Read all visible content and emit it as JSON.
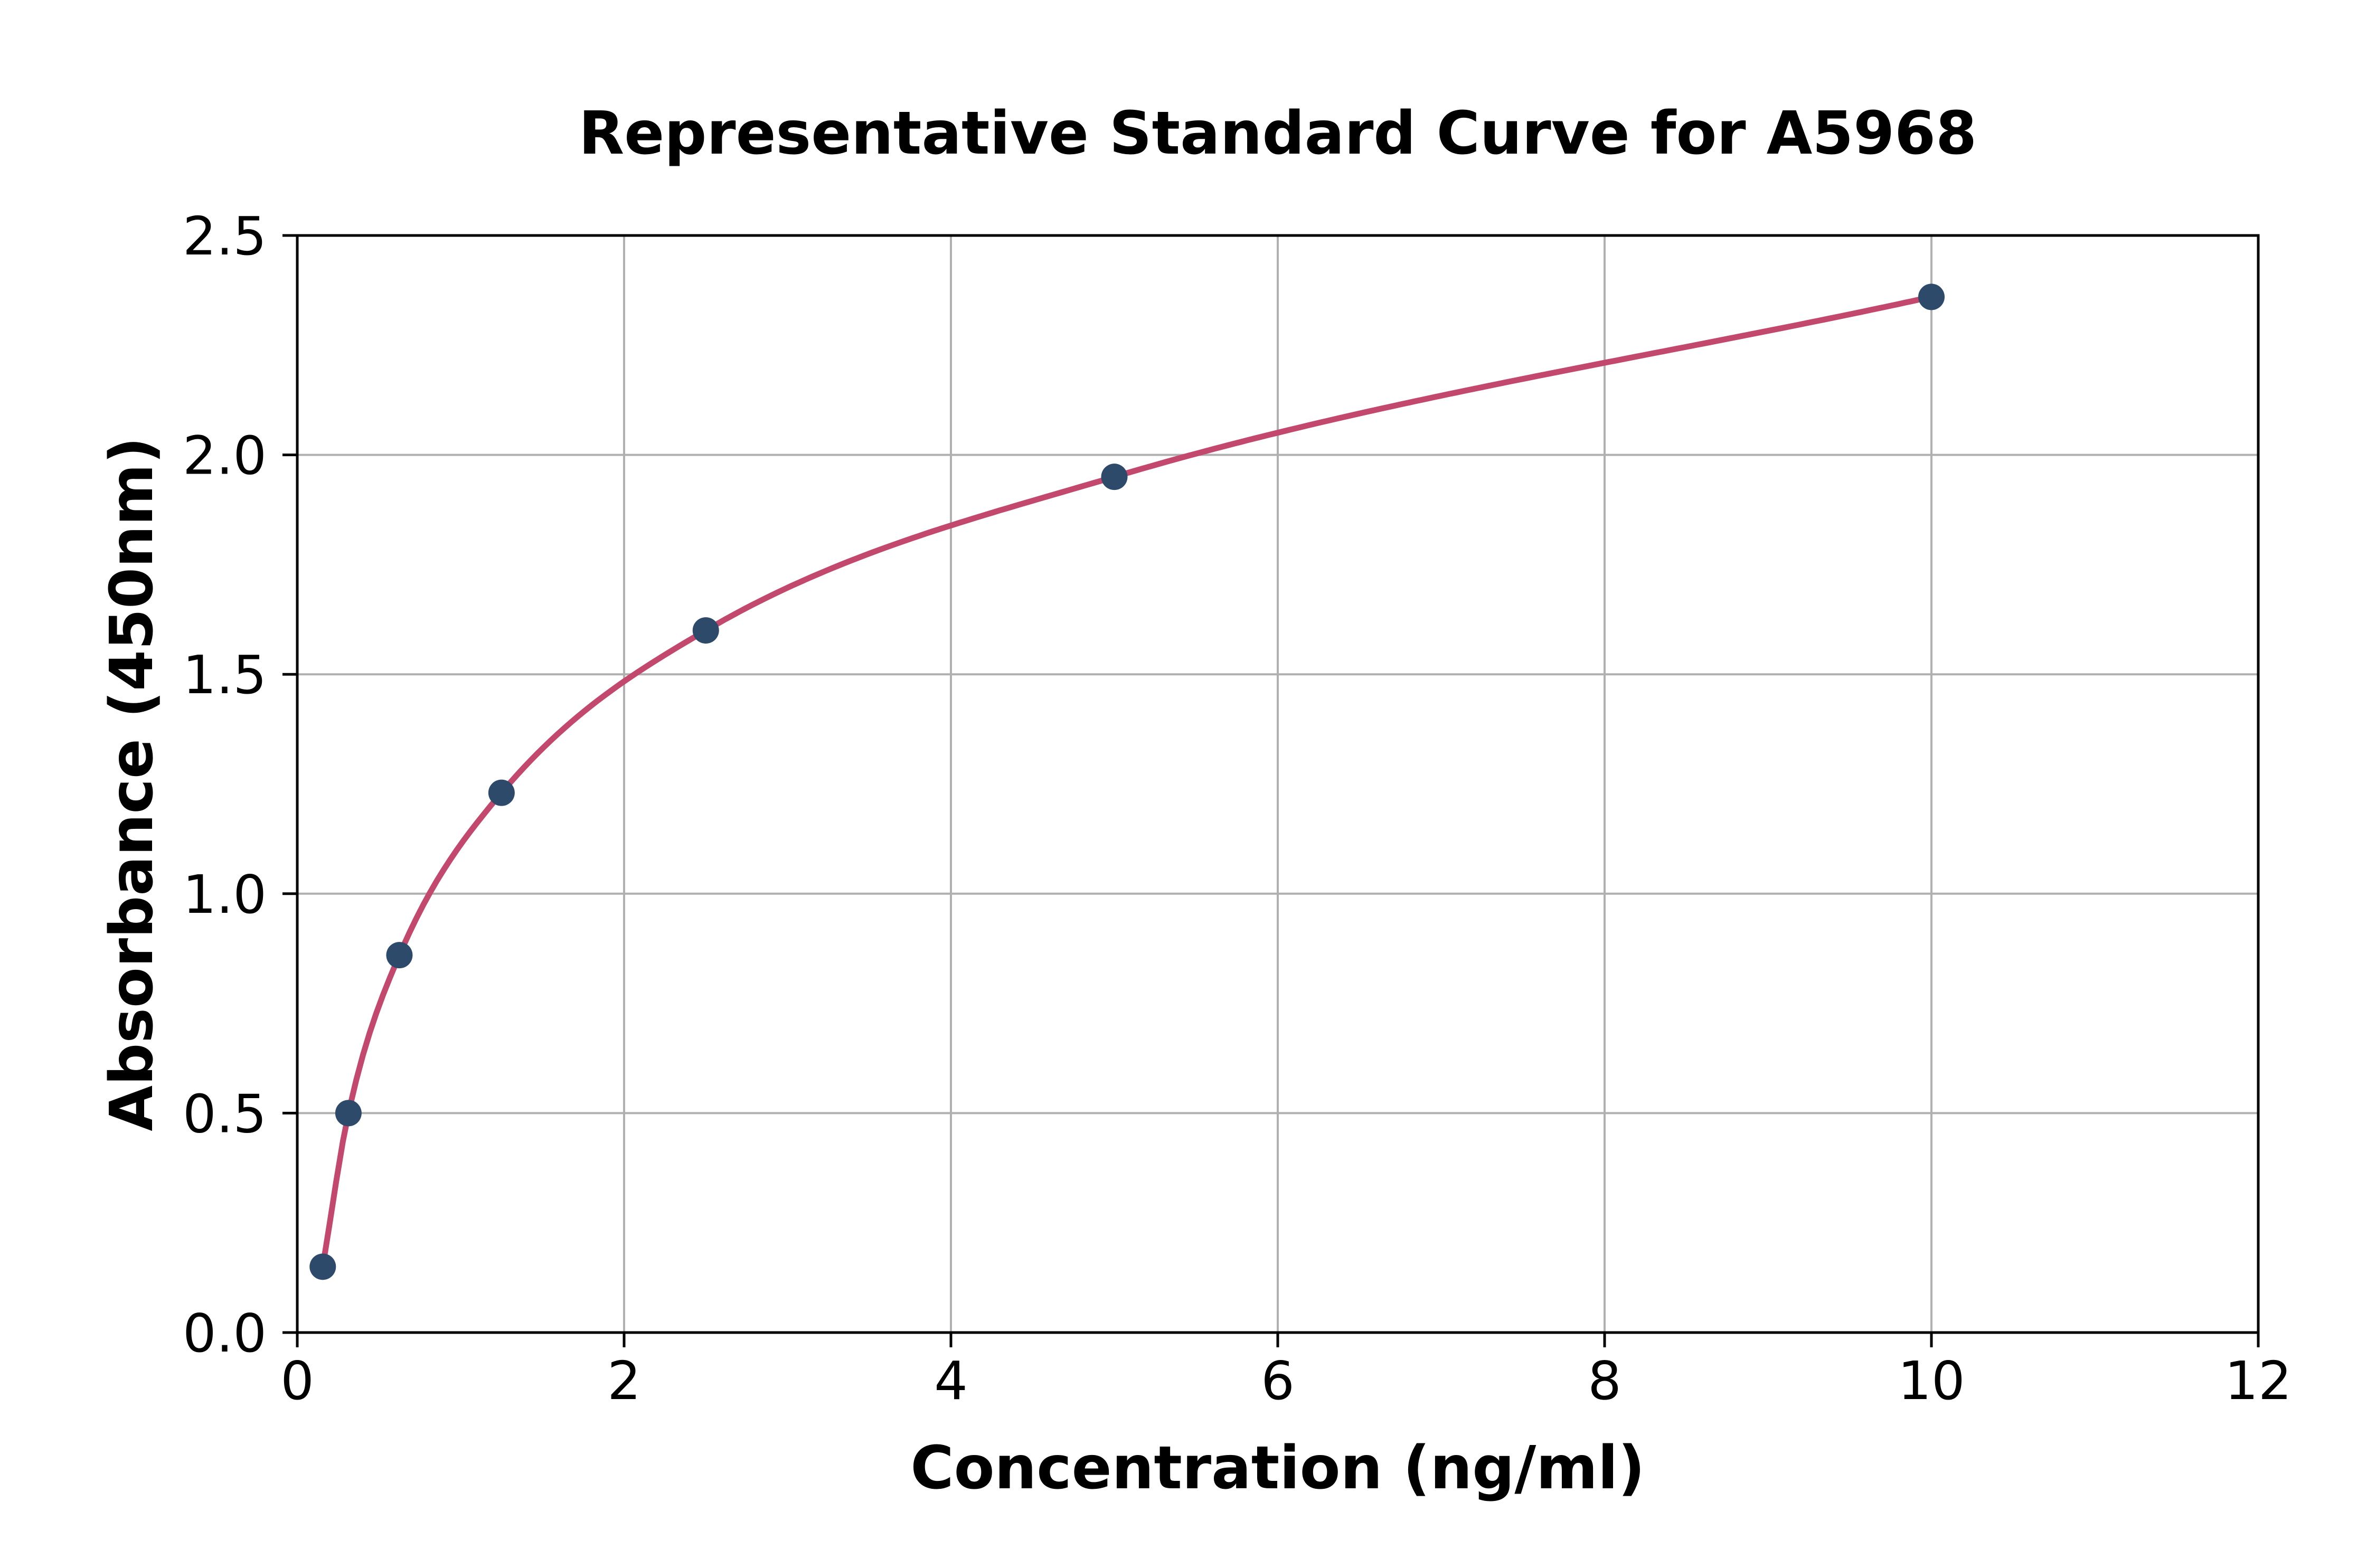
{
  "figure": {
    "title": "Representative Standard Curve for A5968"
  },
  "chart_data": {
    "type": "scatter",
    "title": "Representative Standard Curve for A5968",
    "xlabel": "Concentration (ng/ml)",
    "ylabel": "Absorbance (450nm)",
    "xlim": [
      0,
      12
    ],
    "ylim": [
      0.0,
      2.5
    ],
    "xticks": [
      "0",
      "2",
      "4",
      "6",
      "8",
      "10",
      "12"
    ],
    "yticks": [
      "0.0",
      "0.5",
      "1.0",
      "1.5",
      "2.0",
      "2.5"
    ],
    "grid": true,
    "legend": false,
    "series": [
      {
        "name": "standard-points",
        "type": "scatter",
        "x": [
          0.156,
          0.313,
          0.625,
          1.25,
          2.5,
          5,
          10
        ],
        "y": [
          0.15,
          0.5,
          0.86,
          1.23,
          1.6,
          1.95,
          2.36
        ]
      },
      {
        "name": "fitted-curve",
        "type": "line",
        "x_start": 0.156,
        "x_end": 10,
        "description": "smooth saturating fit through the standard points"
      }
    ],
    "colors": {
      "point": "#2d4a6a",
      "curve": "#c3486e",
      "grid": "#b0b0b0",
      "axis": "#000000",
      "background": "#ffffff"
    }
  }
}
